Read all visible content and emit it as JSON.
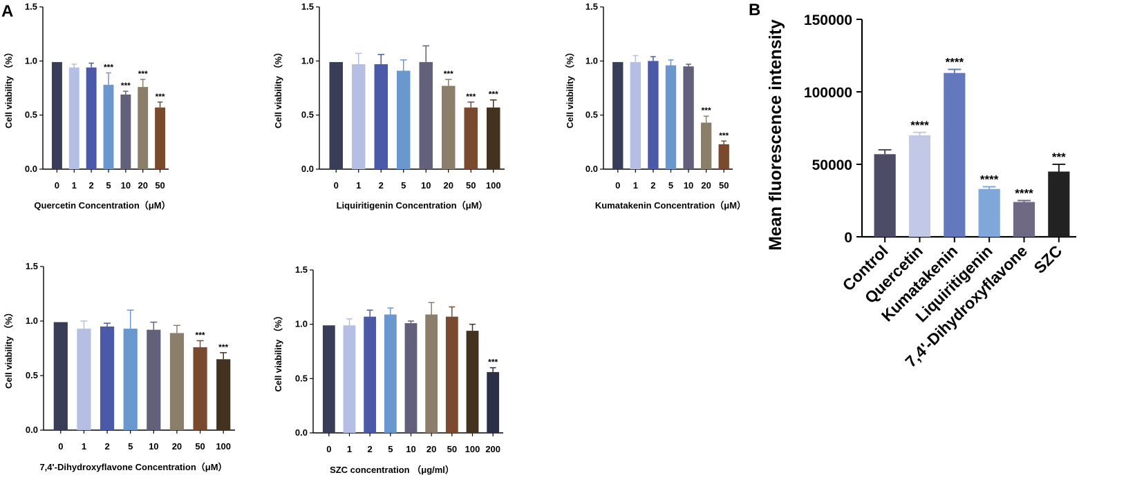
{
  "figure": {
    "panel_a_label": "A",
    "panel_b_label": "B"
  },
  "colors": {
    "axis": "#000000",
    "errorbar": "#000000"
  },
  "chart_data": [
    {
      "id": "quercetin",
      "type": "bar",
      "panel": "A",
      "xlabel": "Quercetin Concentration（μM）",
      "ylabel": "Cell viability （%）",
      "ylim": [
        0,
        1.5
      ],
      "yticks": [
        "0.0",
        "0.5",
        "1.0",
        "1.5"
      ],
      "categories": [
        "0",
        "1",
        "2",
        "5",
        "10",
        "20",
        "50"
      ],
      "values": [
        0.99,
        0.94,
        0.94,
        0.78,
        0.69,
        0.76,
        0.57
      ],
      "errors": [
        0.0,
        0.03,
        0.04,
        0.11,
        0.03,
        0.07,
        0.05
      ],
      "significance": [
        "",
        "",
        "",
        "***",
        "***",
        "***",
        "***"
      ],
      "colors": [
        "#393d57",
        "#b4bfe3",
        "#4a5aa8",
        "#6a97cd",
        "#62607b",
        "#8b7e6b",
        "#7a4a2e"
      ]
    },
    {
      "id": "liquiritigenin",
      "type": "bar",
      "panel": "A",
      "xlabel": "Liquiritigenin Concentration（μM）",
      "ylabel": "Cell viability （%）",
      "ylim": [
        0,
        1.5
      ],
      "yticks": [
        "0.0",
        "0.5",
        "1.0",
        "1.5"
      ],
      "categories": [
        "0",
        "1",
        "2",
        "5",
        "10",
        "20",
        "50",
        "100"
      ],
      "values": [
        0.99,
        0.97,
        0.97,
        0.91,
        0.99,
        0.77,
        0.57,
        0.57
      ],
      "errors": [
        0.0,
        0.1,
        0.09,
        0.1,
        0.15,
        0.06,
        0.05,
        0.07
      ],
      "significance": [
        "",
        "",
        "",
        "",
        "",
        "***",
        "***",
        "***"
      ],
      "colors": [
        "#393d57",
        "#b4bfe3",
        "#4a5aa8",
        "#6a97cd",
        "#62607b",
        "#8b7e6b",
        "#7a4a2e",
        "#43321f"
      ]
    },
    {
      "id": "kumatakenin",
      "type": "bar",
      "panel": "A",
      "xlabel": "Kumatakenin Concentration（μM）",
      "ylabel": "Cell viability （%）",
      "ylim": [
        0,
        1.5
      ],
      "yticks": [
        "0.0",
        "0.5",
        "1.0",
        "1.5"
      ],
      "categories": [
        "0",
        "1",
        "2",
        "5",
        "10",
        "20",
        "50"
      ],
      "values": [
        0.99,
        0.99,
        1.0,
        0.96,
        0.95,
        0.43,
        0.23
      ],
      "errors": [
        0.0,
        0.06,
        0.04,
        0.05,
        0.02,
        0.06,
        0.03
      ],
      "significance": [
        "",
        "",
        "",
        "",
        "",
        "***",
        "***"
      ],
      "colors": [
        "#393d57",
        "#b4bfe3",
        "#4a5aa8",
        "#6a97cd",
        "#62607b",
        "#8b7e6b",
        "#7a4a2e"
      ]
    },
    {
      "id": "dihydroxyflavone",
      "type": "bar",
      "panel": "A",
      "xlabel": "7,4'-Dihydroxyflavone Concentration（μM）",
      "ylabel": "Cell viability （%）",
      "ylim": [
        0,
        1.5
      ],
      "yticks": [
        "0.0",
        "0.5",
        "1.0",
        "1.5"
      ],
      "categories": [
        "0",
        "1",
        "2",
        "5",
        "10",
        "20",
        "50",
        "100"
      ],
      "values": [
        0.99,
        0.93,
        0.95,
        0.93,
        0.92,
        0.89,
        0.76,
        0.65
      ],
      "errors": [
        0.0,
        0.07,
        0.03,
        0.17,
        0.07,
        0.07,
        0.06,
        0.06
      ],
      "significance": [
        "",
        "",
        "",
        "",
        "",
        "",
        "***",
        "***"
      ],
      "colors": [
        "#393d57",
        "#b4bfe3",
        "#4a5aa8",
        "#6a97cd",
        "#62607b",
        "#8b7e6b",
        "#7a4a2e",
        "#43321f"
      ]
    },
    {
      "id": "szc",
      "type": "bar",
      "panel": "A",
      "xlabel": "SZC concentration （μg/ml）",
      "ylabel": "Cell viability （%）",
      "ylim": [
        0,
        1.5
      ],
      "yticks": [
        "0.0",
        "0.5",
        "1.0",
        "1.5"
      ],
      "categories": [
        "0",
        "1",
        "2",
        "5",
        "10",
        "20",
        "50",
        "100",
        "200"
      ],
      "values": [
        0.99,
        0.99,
        1.07,
        1.09,
        1.01,
        1.09,
        1.07,
        0.94,
        0.56
      ],
      "errors": [
        0.0,
        0.06,
        0.06,
        0.06,
        0.02,
        0.11,
        0.09,
        0.06,
        0.04
      ],
      "significance": [
        "",
        "",
        "",
        "",
        "",
        "",
        "",
        "",
        "***"
      ],
      "colors": [
        "#393d57",
        "#b4bfe3",
        "#4a5aa8",
        "#6a97cd",
        "#62607b",
        "#8b7e6b",
        "#7a4a2e",
        "#43321f",
        "#2c3047"
      ]
    },
    {
      "id": "fluorescence",
      "type": "bar",
      "panel": "B",
      "xlabel": "",
      "ylabel": "Mean fluorescence intensity",
      "ylim": [
        0,
        150000
      ],
      "yticks": [
        "0",
        "50000",
        "100000",
        "150000"
      ],
      "categories": [
        "Control",
        "Quercetin",
        "Kumatakenin",
        "Liquiritigenin",
        "7,4'-Dihydroxyflavone",
        "SZC"
      ],
      "values": [
        57000,
        70000,
        113000,
        33000,
        24000,
        45000
      ],
      "errors": [
        3000,
        2000,
        2500,
        1500,
        1000,
        5000
      ],
      "significance": [
        "",
        "****",
        "****",
        "****",
        "****",
        "***"
      ],
      "colors": [
        "#4c4c66",
        "#c2c9e6",
        "#6478be",
        "#7fa7d8",
        "#6f6983",
        "#222222"
      ]
    }
  ]
}
